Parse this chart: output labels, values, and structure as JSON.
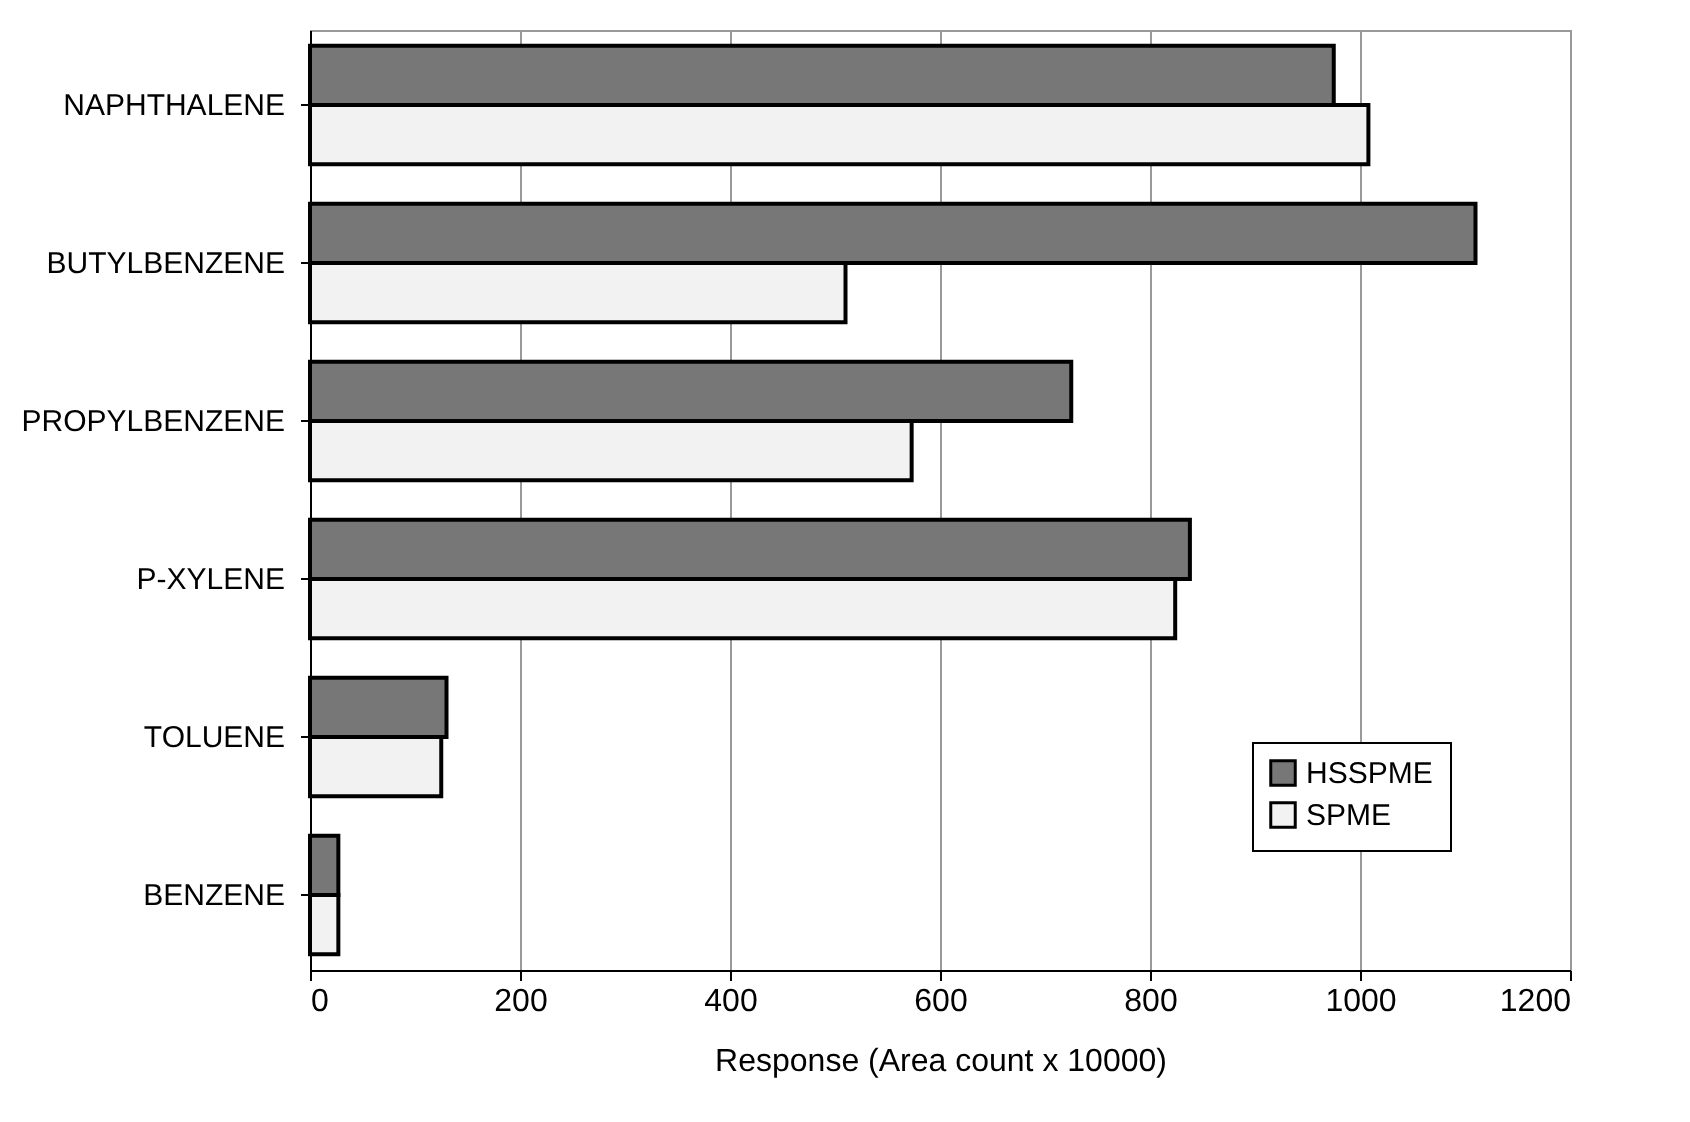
{
  "chart_data": {
    "type": "bar",
    "orientation": "horizontal",
    "xlabel": "Response (Area count x 10000)",
    "categories": [
      "NAPHTHALENE",
      "BUTYLBENZENE",
      "PROPYLBENZENE",
      "P-XYLENE",
      "TOLUENE",
      "BENZENE"
    ],
    "series": [
      {
        "name": "HSSPME",
        "color": "#777777",
        "values": [
          975,
          1110,
          725,
          838,
          130,
          27
        ]
      },
      {
        "name": "SPME",
        "color": "#f2f2f2",
        "values": [
          1008,
          510,
          573,
          824,
          125,
          27
        ]
      }
    ],
    "xlim": [
      0,
      1200
    ],
    "xticks": [
      0,
      200,
      400,
      600,
      800,
      1000,
      1200
    ],
    "grid": "x",
    "legend": "bottom right"
  }
}
